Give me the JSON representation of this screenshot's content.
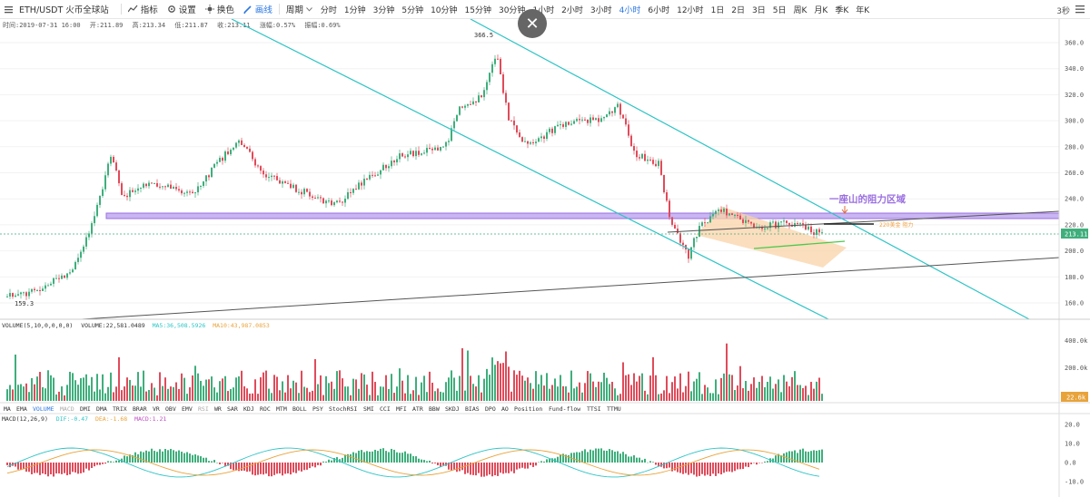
{
  "toolbar": {
    "symbol": "ETH/USDT 火币全球站",
    "indicators_label": "指标",
    "settings_label": "设置",
    "theme_label": "换色",
    "draw_label": "画线",
    "period_label": "周期",
    "intervals": [
      "分时",
      "1分钟",
      "3分钟",
      "5分钟",
      "10分钟",
      "15分钟",
      "30分钟",
      "1小时",
      "2小时",
      "3小时",
      "4小时",
      "6小时",
      "12小时",
      "1日",
      "2日",
      "3日",
      "5日",
      "周K",
      "月K",
      "季K",
      "年K"
    ],
    "active_interval": "4小时",
    "refresh": "3秒"
  },
  "info_line": {
    "time": "时间:2019-07-31 16:00",
    "open": "开:211.89",
    "high": "高:213.34",
    "low": "低:211.87",
    "close": "收:213.11",
    "change": "涨幅:0.57%",
    "amplitude": "振幅:0.69%"
  },
  "price_axis": [
    "360.0",
    "340.0",
    "320.0",
    "300.0",
    "280.0",
    "260.0",
    "240.0",
    "220.0",
    "200.0",
    "180.0",
    "160.0"
  ],
  "current_price": "213.11",
  "high_label": "366.5",
  "low_label": "159.3",
  "annotation": {
    "resistance_zone": "一座山的阻力区域",
    "resistance_220": "220美金 阻力"
  },
  "volume_panel": {
    "title": "VOLUME(5,10,0,0,0,0)",
    "volume": "VOLUME:22,581.0489",
    "ma5": "MA5:36,508.5926",
    "ma10": "MA10:43,987.0853",
    "axis": [
      "400.0k",
      "200.0k"
    ],
    "current": "22.6k"
  },
  "indicator_tabs": [
    "MA",
    "EMA",
    "VOLUME",
    "MACD",
    "DMI",
    "DMA",
    "TRIX",
    "BRAR",
    "VR",
    "OBV",
    "EMV",
    "RSI",
    "WR",
    "SAR",
    "KDJ",
    "ROC",
    "MTM",
    "BOLL",
    "PSY",
    "StochRSI",
    "SMI",
    "CCI",
    "MFI",
    "ATR",
    "BBW",
    "SKDJ",
    "BIAS",
    "DPO",
    "AO",
    "Position",
    "Fund-flow",
    "TTSI",
    "TTMU"
  ],
  "active_tabs": [
    "VOLUME"
  ],
  "dim_tabs": [
    "MACD",
    "RSI"
  ],
  "macd_panel": {
    "title": "MACD(12,26,9)",
    "dif": "DIF:-0.47",
    "dea": "DEA:-1.68",
    "macd": "MACD:1.21",
    "axis": [
      "20.0",
      "10.0",
      "0.0",
      "-10.0"
    ]
  },
  "colors": {
    "up": "#3fae7c",
    "down": "#e04b5a",
    "channel": "#2ec4c6",
    "zone": "#9b6fe0",
    "triangle": "#f7b46a",
    "accent": "#2c78e4",
    "price_tag": "#3fae7c"
  }
}
